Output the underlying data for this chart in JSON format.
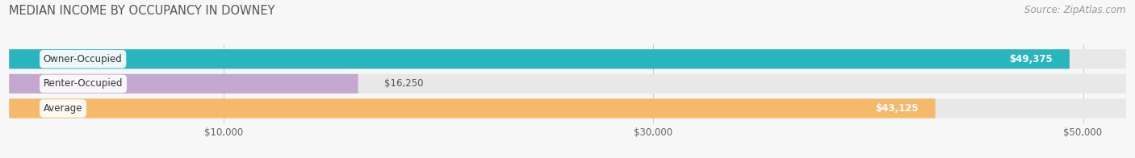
{
  "title": "MEDIAN INCOME BY OCCUPANCY IN DOWNEY",
  "source": "Source: ZipAtlas.com",
  "categories": [
    "Owner-Occupied",
    "Renter-Occupied",
    "Average"
  ],
  "values": [
    49375,
    16250,
    43125
  ],
  "bar_colors": [
    "#29b5be",
    "#c4a8d0",
    "#f5b96b"
  ],
  "value_labels": [
    "$49,375",
    "$16,250",
    "$43,125"
  ],
  "tick_labels": [
    "$10,000",
    "$30,000",
    "$50,000"
  ],
  "tick_values": [
    10000,
    30000,
    50000
  ],
  "xmax": 52000,
  "background_color": "#f7f7f7",
  "bar_bg_color": "#e8e8e8",
  "title_fontsize": 10.5,
  "source_fontsize": 8.5,
  "label_fontsize": 8.5,
  "value_fontsize": 8.5
}
